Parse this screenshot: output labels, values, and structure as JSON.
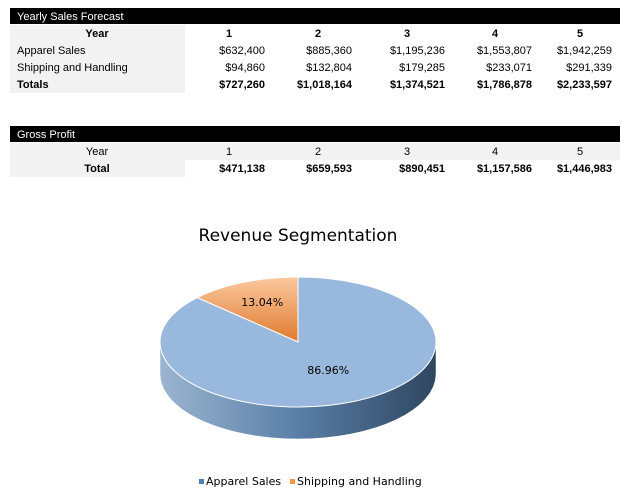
{
  "sales_table": {
    "title": "Yearly Sales Forecast",
    "header": [
      "Year",
      "1",
      "2",
      "3",
      "4",
      "5"
    ],
    "rows": [
      [
        "Apparel Sales",
        "$632,400",
        "$885,360",
        "$1,195,236",
        "$1,553,807",
        "$1,942,259"
      ],
      [
        "Shipping and Handling",
        "$94,860",
        "$132,804",
        "$179,285",
        "$233,071",
        "$291,339"
      ],
      [
        "Totals",
        "$727,260",
        "$1,018,164",
        "$1,374,521",
        "$1,786,878",
        "$2,233,597"
      ]
    ]
  },
  "profit_table": {
    "title": "Gross Profit",
    "header": [
      "Year",
      "1",
      "2",
      "3",
      "4",
      "5"
    ],
    "rows": [
      [
        "Total",
        "$471,138",
        "$659,593",
        "$890,451",
        "$1,157,586",
        "$1,446,983"
      ]
    ]
  },
  "chart_data": {
    "type": "pie",
    "title": "Revenue Segmentation",
    "categories": [
      "Apparel Sales",
      "Shipping and Handling"
    ],
    "values": [
      86.96,
      13.04
    ],
    "value_labels": [
      "86.96%",
      "13.04%"
    ],
    "colors": [
      "#4f81bd",
      "#f79646"
    ]
  }
}
